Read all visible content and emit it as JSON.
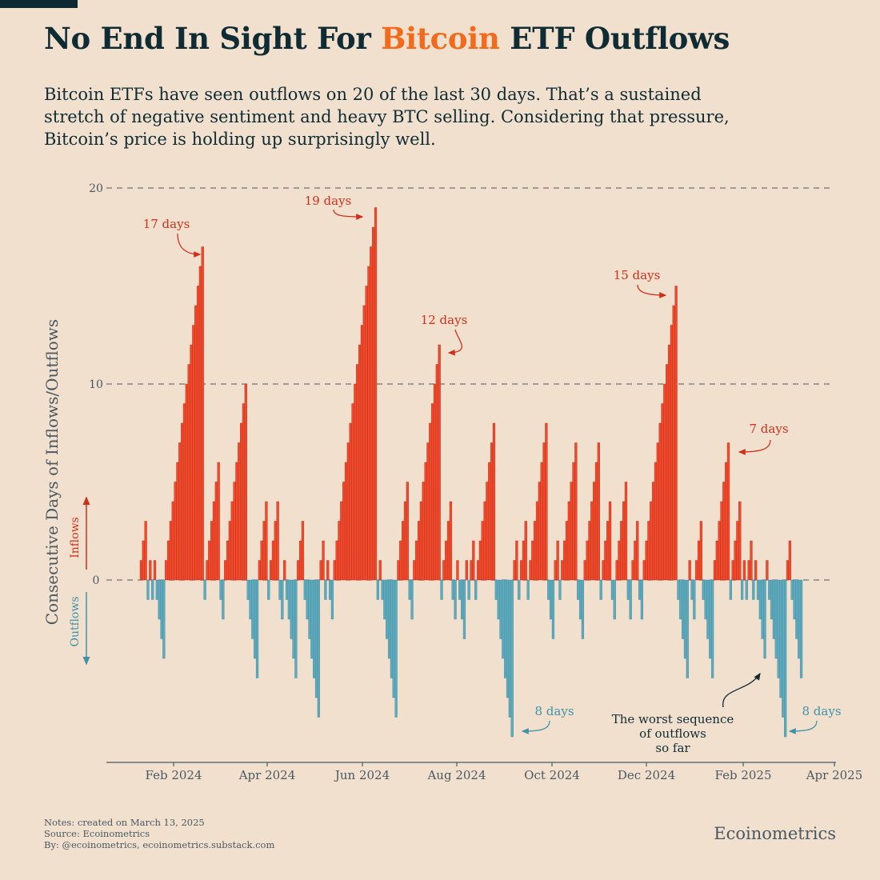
{
  "header": {
    "title_before": "No End In Sight For ",
    "title_highlight": "Bitcoin",
    "title_after": " ETF Outflows",
    "subtitle": "Bitcoin ETFs have seen outflows on 20 of the last 30 days. That’s a sustained stretch of negative sentiment and heavy BTC selling. Considering that pressure, Bitcoin’s price is holding up surprisingly well."
  },
  "colors": {
    "inflow": "#f04a2d",
    "inflow_edge": "#b82a14",
    "outflow": "#5fa9bd",
    "outflow_edge": "#3f8a9e",
    "highlight": "#f26a1b",
    "text": "#0f2b33",
    "axis": "#4a5860",
    "background": "#f2e0cf"
  },
  "chart_data": {
    "type": "bar",
    "title": "No End In Sight For Bitcoin ETF Outflows",
    "ylabel": "Consecutive Days of Inflows/Outflows",
    "ylim": [
      -9.4,
      20
    ],
    "yticks": [
      0,
      10,
      20
    ],
    "grid": "horizontal dashed at y ticks",
    "x_range": [
      "Jan 11, 2024",
      "Mar 12, 2025"
    ],
    "xticks": [
      "Feb 2024",
      "Apr 2024",
      "Jun 2024",
      "Aug 2024",
      "Oct 2024",
      "Dec 2024",
      "Feb 2025",
      "Apr 2025"
    ],
    "signed_run_lengths_trading_days": [
      3,
      -1,
      1,
      -1,
      1,
      -4,
      17,
      -1,
      6,
      -2,
      10,
      -5,
      4,
      -1,
      4,
      -2,
      1,
      -5,
      3,
      -7,
      2,
      -1,
      1,
      -2,
      19,
      -1,
      1,
      -7,
      5,
      -2,
      12,
      -1,
      4,
      -2,
      1,
      -3,
      1,
      -1,
      2,
      -1,
      8,
      -8,
      2,
      -1,
      3,
      -1,
      8,
      -3,
      2,
      -1,
      7,
      -3,
      7,
      -1,
      4,
      -2,
      5,
      -2,
      3,
      -2,
      15,
      -5,
      1,
      -2,
      3,
      -5,
      7,
      -1,
      4,
      -1,
      1,
      -1,
      2,
      -1,
      1,
      -4,
      1,
      -8,
      2,
      -5
    ],
    "series_labels": {
      "positive": "Inflows",
      "negative": "Outflows"
    },
    "annotations": [
      {
        "text": "17 days",
        "series": "inflow",
        "value": 17
      },
      {
        "text": "19 days",
        "series": "inflow",
        "value": 19
      },
      {
        "text": "12 days",
        "series": "inflow",
        "value": 12
      },
      {
        "text": "15 days",
        "series": "inflow",
        "value": 15
      },
      {
        "text": "7 days",
        "series": "inflow",
        "value": 7
      },
      {
        "text": "8 days",
        "series": "outflow",
        "value": -8
      },
      {
        "text": "8 days",
        "series": "outflow",
        "value": -8
      }
    ],
    "callout": [
      "The worst sequence",
      "of outflows",
      "so far"
    ]
  },
  "footer": {
    "notes": "Notes: created on March 13, 2025",
    "source": "Source: Ecoinometrics",
    "by": "By: @ecoinometrics, ecoinometrics.substack.com",
    "brand": "Ecoinometrics"
  }
}
